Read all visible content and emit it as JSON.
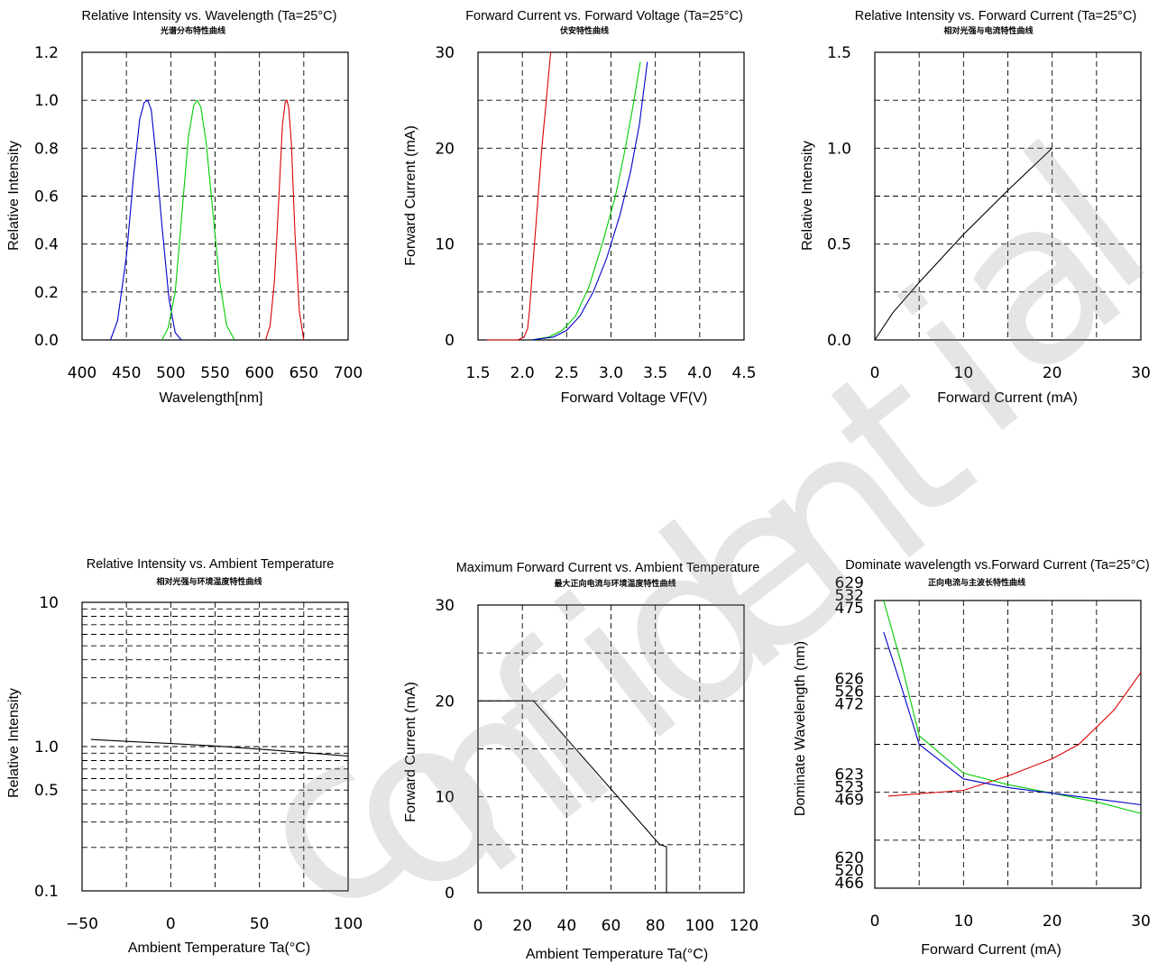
{
  "watermark": "confidential",
  "chart_data": [
    {
      "type": "line",
      "title": "Relative Intensity vs. Wavelength (Ta=25°C)",
      "subtitle": "光谱分布特性曲线",
      "xlabel": "Wavelength[nm]",
      "ylabel": "Relative Intensity",
      "xlim": [
        400,
        700
      ],
      "ylim": [
        0,
        1.2
      ],
      "xticks": [
        "400",
        "450",
        "500",
        "550",
        "600",
        "650",
        "700"
      ],
      "yticks": [
        "0.0",
        "0.2",
        "0.4",
        "0.6",
        "0.8",
        "1.0",
        "1.2"
      ],
      "grid": true,
      "series": [
        {
          "color": "#0000cc",
          "x": [
            432,
            440,
            450,
            458,
            465,
            470,
            474,
            478,
            483,
            490,
            498,
            505,
            512
          ],
          "y": [
            0.0,
            0.08,
            0.35,
            0.68,
            0.92,
            0.99,
            1.0,
            0.96,
            0.78,
            0.48,
            0.17,
            0.03,
            0.0
          ]
        },
        {
          "color": "#00cc00",
          "x": [
            490,
            497,
            505,
            512,
            520,
            526,
            530,
            534,
            540,
            547,
            555,
            563,
            572
          ],
          "y": [
            0.0,
            0.05,
            0.2,
            0.5,
            0.85,
            0.98,
            1.0,
            0.97,
            0.82,
            0.55,
            0.25,
            0.06,
            0.0
          ]
        },
        {
          "color": "#dd0000",
          "x": [
            607,
            612,
            617,
            622,
            626,
            629,
            631,
            633,
            636,
            640,
            645,
            650
          ],
          "y": [
            0.0,
            0.06,
            0.25,
            0.6,
            0.9,
            0.99,
            1.0,
            0.97,
            0.82,
            0.45,
            0.12,
            0.0
          ]
        }
      ]
    },
    {
      "type": "line",
      "title": "Forward Current vs. Forward Voltage (Ta=25°C)",
      "subtitle": "伏安特性曲线",
      "xlabel": "Forward Voltage VF(V)",
      "ylabel": "Forward Current (mA)",
      "xlim": [
        1.5,
        4.5
      ],
      "ylim": [
        0,
        30
      ],
      "xticks": [
        "1.5",
        "2.0",
        "2.5",
        "3.0",
        "3.5",
        "4.0",
        "4.5"
      ],
      "yticks": [
        "0",
        "10",
        "20",
        "30"
      ],
      "grid": true,
      "series": [
        {
          "color": "#dd0000",
          "x": [
            1.6,
            1.95,
            2.02,
            2.06,
            2.08,
            2.12,
            2.17,
            2.22,
            2.28,
            2.32
          ],
          "y": [
            0,
            0,
            0.3,
            1.2,
            3,
            8,
            14,
            20,
            26,
            30
          ]
        },
        {
          "color": "#00cc00",
          "x": [
            2.1,
            2.3,
            2.45,
            2.6,
            2.75,
            2.9,
            3.05,
            3.15,
            3.25,
            3.33
          ],
          "y": [
            0,
            0.3,
            1,
            2.5,
            5.5,
            10,
            15,
            19.5,
            24.5,
            29
          ]
        },
        {
          "color": "#0000cc",
          "x": [
            2.1,
            2.35,
            2.5,
            2.65,
            2.8,
            2.95,
            3.1,
            3.22,
            3.32,
            3.41
          ],
          "y": [
            0,
            0.3,
            1,
            2.5,
            5,
            8.5,
            13,
            17.5,
            22.5,
            29
          ]
        }
      ]
    },
    {
      "type": "line",
      "title": "Relative Intensity vs. Forward Current (Ta=25°C)",
      "subtitle": "相对光强与电流特性曲线",
      "xlabel": "Forward Current (mA)",
      "ylabel": "Relative Intensity",
      "xlim": [
        0,
        30
      ],
      "ylim": [
        0,
        1.5
      ],
      "xticks": [
        "0",
        "10",
        "20",
        "30"
      ],
      "yticks": [
        "0.0",
        "0.5",
        "1.0",
        "1.5"
      ],
      "grid": true,
      "series": [
        {
          "color": "#000000",
          "x": [
            0,
            2,
            5,
            10,
            15,
            20
          ],
          "y": [
            0,
            0.14,
            0.3,
            0.55,
            0.78,
            1.0
          ]
        }
      ]
    },
    {
      "type": "line",
      "title": "Relative Intensity vs. Ambient Temperature",
      "subtitle": "相对光强与环境温度特性曲线",
      "xlabel": "Ambient Temperature Ta(°C)",
      "ylabel": "Relative Intensity",
      "xlim": [
        -50,
        100
      ],
      "ylim": [
        0.1,
        10
      ],
      "yscale": "log",
      "xticks": [
        "−50",
        "0",
        "50",
        "100"
      ],
      "yticks": [
        "0.1",
        "0.5",
        "1.0",
        "10"
      ],
      "grid": true,
      "series": [
        {
          "color": "#000000",
          "x": [
            -45,
            -20,
            0,
            25,
            50,
            75,
            100
          ],
          "y": [
            1.12,
            1.08,
            1.05,
            1.01,
            0.96,
            0.91,
            0.86
          ]
        }
      ]
    },
    {
      "type": "line",
      "title": "Maximum Forward Current vs. Ambient Temperature",
      "subtitle": "最大正向电流与环境温度特性曲线",
      "xlabel": "Ambient Temperature Ta(°C)",
      "ylabel": "Forward Current (mA)",
      "xlim": [
        0,
        120
      ],
      "ylim": [
        0,
        30
      ],
      "xticks": [
        "0",
        "20",
        "40",
        "60",
        "80",
        "100",
        "120"
      ],
      "yticks": [
        "0",
        "10",
        "20",
        "30"
      ],
      "grid": true,
      "series": [
        {
          "color": "#000000",
          "x": [
            0,
            25,
            82,
            85,
            85,
            0
          ],
          "y": [
            20,
            20,
            5,
            4.8,
            0,
            0
          ]
        }
      ]
    },
    {
      "type": "line",
      "title": "Dominate wavelength vs.Forward Current (Ta=25°C)",
      "subtitle": "正向电流与主波长特性曲线",
      "xlabel": "Forward Current (mA)",
      "ylabel": "Dominate Wavelength (nm)",
      "xlim": [
        0,
        30
      ],
      "xticks": [
        "0",
        "10",
        "20",
        "30"
      ],
      "ytick_groups": [
        [
          "629",
          "532",
          "475"
        ],
        [
          "626",
          "526",
          "472"
        ],
        [
          "623",
          "523",
          "469"
        ],
        [
          "620",
          "520",
          "466"
        ]
      ],
      "grid": true,
      "series": [
        {
          "color": "#dd0000",
          "x": [
            1.5,
            10,
            15,
            20,
            23,
            27,
            30
          ],
          "y": [
            0.32,
            0.34,
            0.39,
            0.45,
            0.5,
            0.62,
            0.75
          ]
        },
        {
          "color": "#00cc00",
          "x": [
            1,
            3,
            5,
            10,
            15,
            20,
            25,
            30
          ],
          "y": [
            1.0,
            0.78,
            0.53,
            0.4,
            0.36,
            0.33,
            0.3,
            0.26
          ]
        },
        {
          "color": "#0000cc",
          "x": [
            1,
            3,
            5,
            10,
            15,
            20,
            25,
            30
          ],
          "y": [
            0.89,
            0.7,
            0.5,
            0.38,
            0.35,
            0.33,
            0.31,
            0.29
          ]
        }
      ]
    }
  ]
}
